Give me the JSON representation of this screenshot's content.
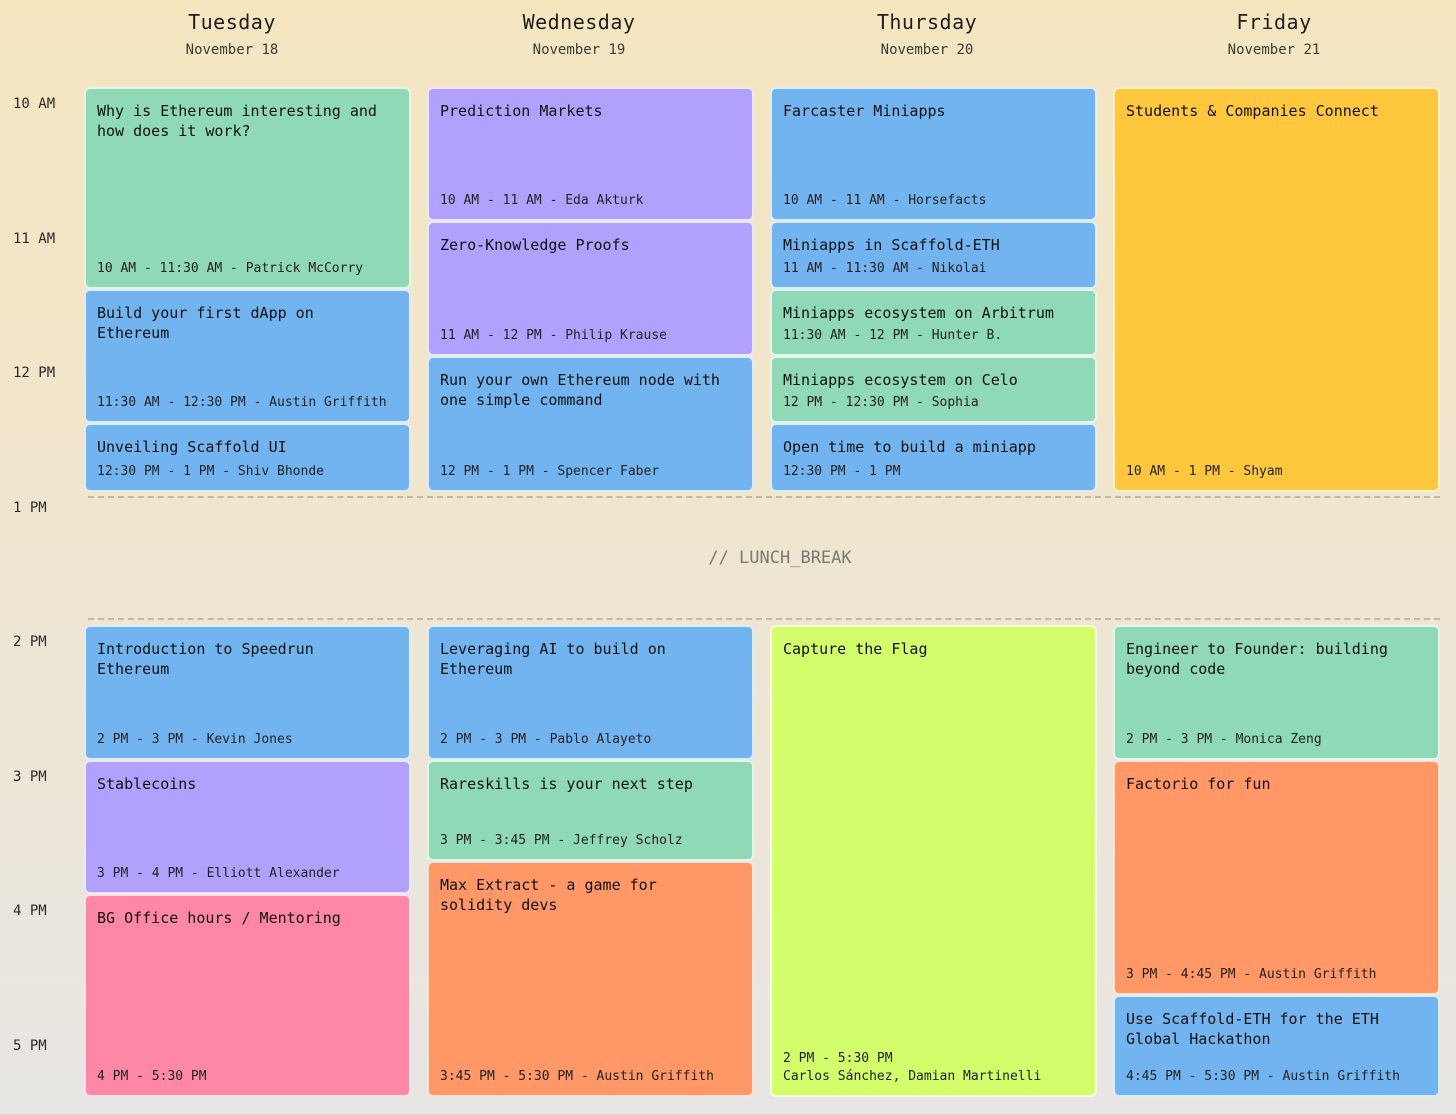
{
  "days": [
    {
      "name": "Tuesday",
      "date": "November 18"
    },
    {
      "name": "Wednesday",
      "date": "November 19"
    },
    {
      "name": "Thursday",
      "date": "November 20"
    },
    {
      "name": "Friday",
      "date": "November 21"
    }
  ],
  "times": [
    "10 AM",
    "11 AM",
    "12 PM",
    "1 PM",
    "2 PM",
    "3 PM",
    "4 PM",
    "5 PM"
  ],
  "lunch_break": "// LUNCH_BREAK",
  "colors": {
    "green": "#8fd9b6",
    "blue": "#72b4ef",
    "purple": "#b1a1fd",
    "yellow": "#fec73e",
    "lime": "#d3fd6b",
    "orange": "#ff9767",
    "pink": "#ff87a6"
  },
  "events": {
    "tue": [
      {
        "title": "Why is Ethereum interesting and\nhow does it work?",
        "meta": "10 AM - 11:30 AM - Patrick McCorry"
      },
      {
        "title": "Build your first dApp on\nEthereum",
        "meta": "11:30 AM - 12:30 PM - Austin Griffith"
      },
      {
        "title": "Unveiling Scaffold UI",
        "meta": "12:30 PM - 1 PM - Shiv Bhonde"
      },
      {
        "title": "Introduction to Speedrun\nEthereum",
        "meta": "2 PM - 3 PM - Kevin Jones"
      },
      {
        "title": "Stablecoins",
        "meta": "3 PM - 4 PM - Elliott Alexander"
      },
      {
        "title": "BG Office hours / Mentoring",
        "meta": "4 PM - 5:30 PM"
      }
    ],
    "wed": [
      {
        "title": "Prediction Markets",
        "meta": "10 AM - 11 AM - Eda Akturk"
      },
      {
        "title": "Zero-Knowledge Proofs",
        "meta": "11 AM - 12 PM - Philip Krause"
      },
      {
        "title": "Run your own Ethereum node with\none simple command",
        "meta": "12 PM - 1 PM - Spencer Faber"
      },
      {
        "title": "Leveraging AI to build on\nEthereum",
        "meta": "2 PM - 3 PM - Pablo Alayeto"
      },
      {
        "title": "Rareskills is your next step",
        "meta": "3 PM - 3:45 PM - Jeffrey Scholz"
      },
      {
        "title": "Max Extract - a game for\nsolidity devs",
        "meta": "3:45 PM - 5:30 PM - Austin Griffith"
      }
    ],
    "thu": [
      {
        "title": "Farcaster Miniapps",
        "meta": "10 AM - 11 AM - Horsefacts"
      },
      {
        "title": "Miniapps in Scaffold-ETH",
        "meta": "11 AM - 11:30 AM - Nikolai"
      },
      {
        "title": "Miniapps ecosystem on Arbitrum",
        "meta": "11:30 AM - 12 PM - Hunter B."
      },
      {
        "title": "Miniapps ecosystem on Celo",
        "meta": "12 PM - 12:30 PM - Sophia"
      },
      {
        "title": "Open time to build a miniapp",
        "meta": "12:30 PM - 1 PM"
      },
      {
        "title": "Capture the Flag",
        "meta": "2 PM - 5:30 PM",
        "meta2": "Carlos Sánchez, Damian Martinelli"
      }
    ],
    "fri": [
      {
        "title": "Students & Companies Connect",
        "meta": "10 AM - 1 PM - Shyam"
      },
      {
        "title": "Engineer to Founder: building\nbeyond code",
        "meta": "2 PM - 3 PM - Monica Zeng"
      },
      {
        "title": "Factorio for fun",
        "meta": "3 PM - 4:45 PM - Austin Griffith"
      },
      {
        "title": "Use Scaffold-ETH for the ETH\nGlobal Hackathon",
        "meta": "4:45 PM - 5:30 PM - Austin Griffith"
      }
    ]
  }
}
